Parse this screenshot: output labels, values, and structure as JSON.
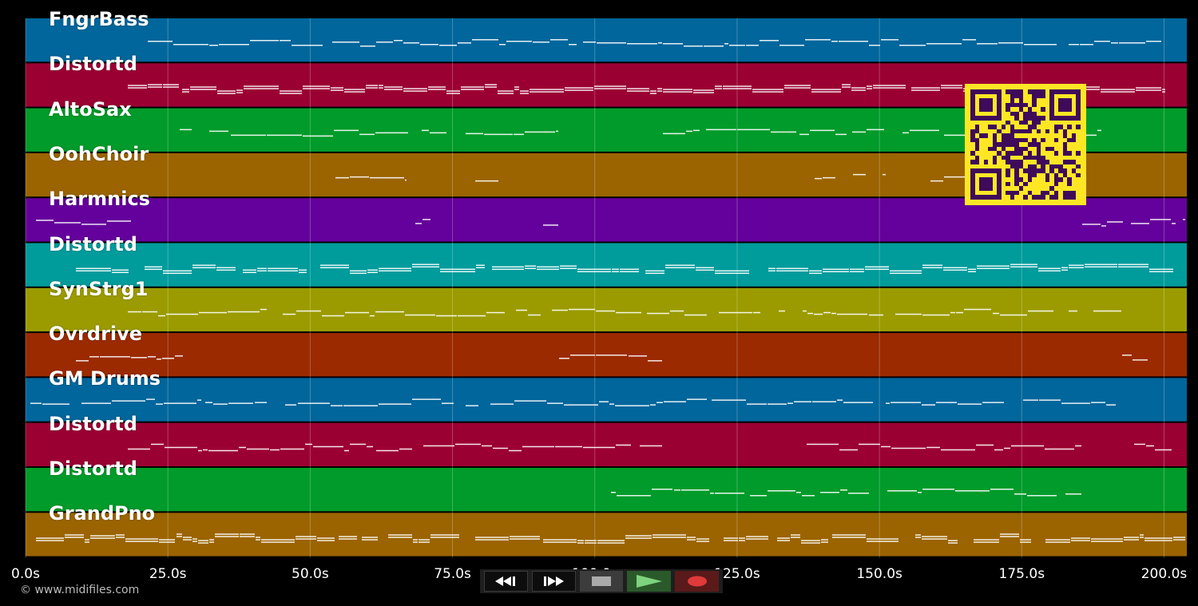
{
  "tracks": [
    {
      "name": "FngrBass",
      "color": "#00669b"
    },
    {
      "name": "Distortd",
      "color": "#9b0033"
    },
    {
      "name": "AltoSax",
      "color": "#009b2a"
    },
    {
      "name": "OohChoir",
      "color": "#9b6400"
    },
    {
      "name": "Harmnics",
      "color": "#64009b"
    },
    {
      "name": "Distortd",
      "color": "#009b9b"
    },
    {
      "name": "SynStrg1",
      "color": "#9b9b00"
    },
    {
      "name": "Ovrdrive",
      "color": "#9b2a00"
    },
    {
      "name": "GM Drums",
      "color": "#00669b"
    },
    {
      "name": "Distortd",
      "color": "#9b0033"
    },
    {
      "name": "Distortd",
      "color": "#009b2a"
    },
    {
      "name": "GrandPno",
      "color": "#9b6400"
    }
  ],
  "time_axis": {
    "ticks": [
      "0.0s",
      "25.0s",
      "50.0s",
      "75.0s",
      "100.0s",
      "125.0s",
      "150.0s",
      "175.0s",
      "200.0s"
    ],
    "max_seconds": 204
  },
  "copyright": "© www.midifiles.com",
  "transport": {
    "rewind": "rewind",
    "fast_forward": "fast-forward",
    "stop": "stop",
    "play": "play",
    "record": "record"
  },
  "qr": {
    "background": "#fde725",
    "foreground": "#3f0a5a"
  },
  "colors": {
    "grid": "#ffffff",
    "note": "#ffffff",
    "background": "#000000"
  }
}
